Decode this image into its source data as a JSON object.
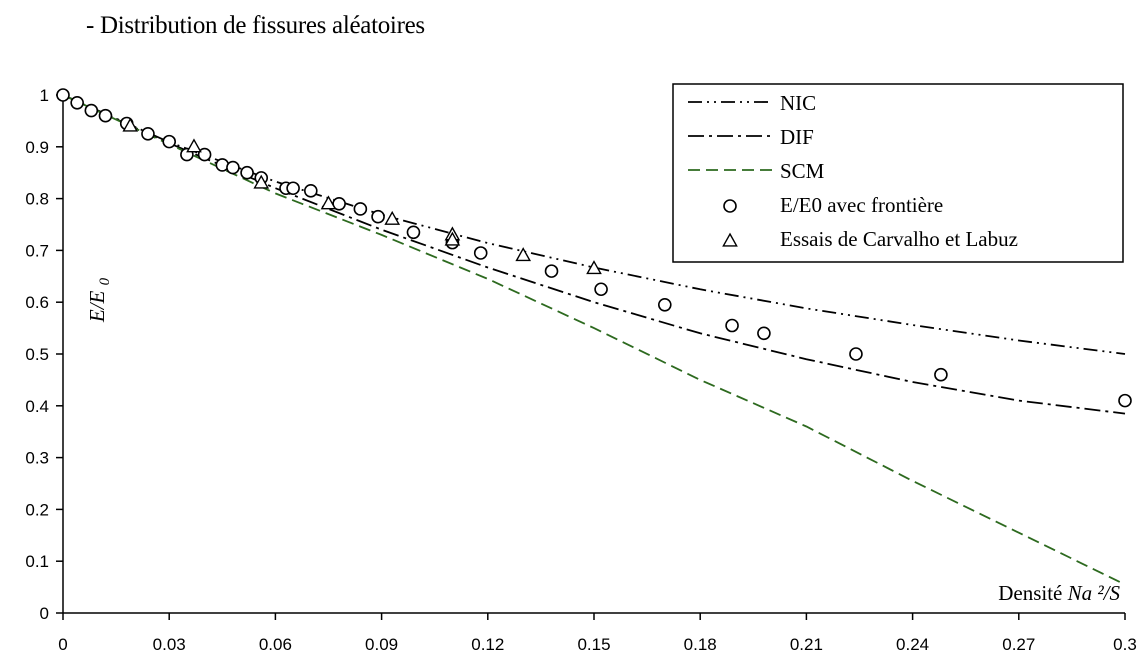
{
  "page_title": "- Distribution de fissures aléatoires",
  "chart_data": {
    "type": "line",
    "title": "",
    "xlabel": "Densité",
    "xlabel_math": "Na ²/S",
    "ylabel_math": "E/E",
    "ylabel_sub": "0",
    "xlim": [
      0,
      0.3
    ],
    "ylim": [
      0,
      1
    ],
    "x_ticks": [
      "0",
      "0.03",
      "0.06",
      "0.09",
      "0.12",
      "0.15",
      "0.18",
      "0.21",
      "0.24",
      "0.27",
      "0.3"
    ],
    "y_ticks": [
      "0",
      "0.1",
      "0.2",
      "0.3",
      "0.4",
      "0.5",
      "0.6",
      "0.7",
      "0.8",
      "0.9",
      "1"
    ],
    "legend_position": "top-right",
    "series": [
      {
        "name": "NIC",
        "style": "dash-dot-dot",
        "color": "#000000",
        "x": [
          0,
          0.03,
          0.06,
          0.09,
          0.12,
          0.15,
          0.18,
          0.21,
          0.24,
          0.27,
          0.3
        ],
        "y": [
          1.0,
          0.909,
          0.833,
          0.769,
          0.714,
          0.667,
          0.625,
          0.588,
          0.556,
          0.526,
          0.5
        ]
      },
      {
        "name": "DIF",
        "style": "dash-dot",
        "color": "#000000",
        "x": [
          0,
          0.03,
          0.06,
          0.09,
          0.12,
          0.15,
          0.18,
          0.21,
          0.24,
          0.27,
          0.3
        ],
        "y": [
          1.0,
          0.907,
          0.82,
          0.74,
          0.667,
          0.6,
          0.54,
          0.49,
          0.446,
          0.41,
          0.385
        ]
      },
      {
        "name": "SCM",
        "style": "dashed",
        "color": "#2d6a1f",
        "x": [
          0,
          0.03,
          0.06,
          0.09,
          0.12,
          0.15,
          0.18,
          0.21,
          0.24,
          0.27,
          0.3
        ],
        "y": [
          1.0,
          0.905,
          0.81,
          0.73,
          0.645,
          0.55,
          0.45,
          0.36,
          0.255,
          0.155,
          0.055
        ]
      },
      {
        "name": "E/E0 avec frontière",
        "marker": "circle",
        "x": [
          0,
          0.004,
          0.008,
          0.012,
          0.018,
          0.024,
          0.03,
          0.035,
          0.04,
          0.045,
          0.048,
          0.052,
          0.056,
          0.063,
          0.065,
          0.07,
          0.078,
          0.084,
          0.089,
          0.099,
          0.11,
          0.118,
          0.138,
          0.152,
          0.17,
          0.189,
          0.198,
          0.224,
          0.248,
          0.3
        ],
        "y": [
          1.0,
          0.985,
          0.97,
          0.96,
          0.945,
          0.925,
          0.91,
          0.885,
          0.885,
          0.865,
          0.86,
          0.85,
          0.84,
          0.82,
          0.82,
          0.815,
          0.79,
          0.78,
          0.765,
          0.735,
          0.715,
          0.695,
          0.66,
          0.625,
          0.595,
          0.555,
          0.54,
          0.5,
          0.46,
          0.41
        ]
      },
      {
        "name": "Essais de Carvalho et Labuz",
        "marker": "triangle",
        "x": [
          0.019,
          0.037,
          0.056,
          0.075,
          0.093,
          0.11,
          0.11,
          0.13,
          0.15
        ],
        "y": [
          0.94,
          0.9,
          0.83,
          0.79,
          0.76,
          0.73,
          0.72,
          0.69,
          0.665
        ]
      }
    ]
  }
}
